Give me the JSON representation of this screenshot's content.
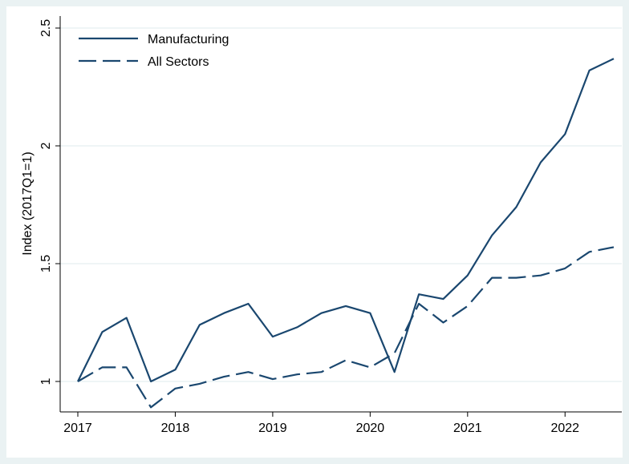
{
  "chart_data": {
    "type": "line",
    "title": "",
    "xlabel": "",
    "ylabel": "Index (2017Q1=1)",
    "x": [
      2017.0,
      2017.25,
      2017.5,
      2017.75,
      2018.0,
      2018.25,
      2018.5,
      2018.75,
      2019.0,
      2019.25,
      2019.5,
      2019.75,
      2020.0,
      2020.25,
      2020.5,
      2020.75,
      2021.0,
      2021.25,
      2021.5,
      2021.75,
      2022.0,
      2022.25,
      2022.5
    ],
    "xlim": [
      2017,
      2022.5
    ],
    "ylim": [
      1,
      2.5
    ],
    "xticks": [
      2017,
      2018,
      2019,
      2020,
      2021,
      2022
    ],
    "xtick_labels": [
      "2017",
      "2018",
      "2019",
      "2020",
      "2021",
      "2022"
    ],
    "yticks": [
      1,
      1.5,
      2,
      2.5
    ],
    "ytick_labels": [
      "1",
      "1.5",
      "2",
      "2.5"
    ],
    "grid": true,
    "legend_position": "top-left",
    "series": [
      {
        "name": "Manufacturing",
        "style": "solid",
        "color": "#1a476f",
        "values": [
          1.0,
          1.21,
          1.27,
          1.0,
          1.05,
          1.24,
          1.29,
          1.33,
          1.19,
          1.23,
          1.29,
          1.32,
          1.29,
          1.04,
          1.37,
          1.35,
          1.45,
          1.62,
          1.74,
          1.93,
          2.05,
          2.32,
          2.37
        ]
      },
      {
        "name": "All Sectors",
        "style": "dashed",
        "color": "#1a476f",
        "values": [
          1.0,
          1.06,
          1.06,
          0.89,
          0.97,
          0.99,
          1.02,
          1.04,
          1.01,
          1.03,
          1.04,
          1.09,
          1.06,
          1.12,
          1.33,
          1.25,
          1.32,
          1.44,
          1.44,
          1.45,
          1.48,
          1.55,
          1.57
        ]
      }
    ]
  }
}
